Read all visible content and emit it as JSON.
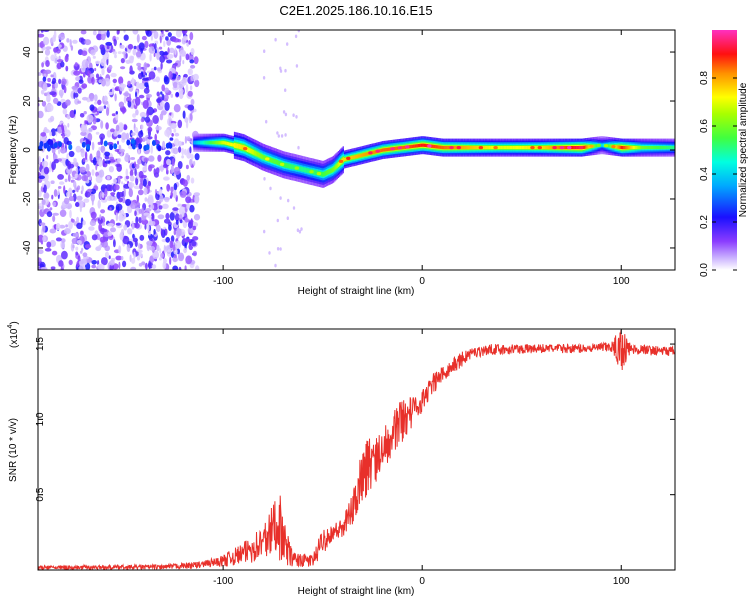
{
  "title": "C2E1.2025.186.10.16.E15",
  "chart_data": [
    {
      "type": "heatmap",
      "xlabel": "Height of straight line (km)",
      "ylabel": "Frequency (Hz)",
      "xlim": [
        -193,
        127
      ],
      "ylim": [
        -49,
        49
      ],
      "xticks": [
        -100,
        0,
        100
      ],
      "yticks": [
        -40,
        -20,
        0,
        20,
        40
      ],
      "colorbar": {
        "label": "Normalized spectral amplitude",
        "range": [
          0,
          1
        ],
        "ticks": [
          0.0,
          0.2,
          0.4,
          0.6,
          0.8
        ]
      },
      "signal_track": {
        "x": [
          -115,
          -100,
          -90,
          -80,
          -70,
          -60,
          -50,
          -45,
          -40,
          -30,
          -20,
          -10,
          0,
          10,
          20,
          40,
          60,
          80,
          90,
          100,
          110,
          127
        ],
        "freq": [
          3,
          3,
          1,
          -3,
          -6,
          -8,
          -10,
          -8,
          -4,
          -2,
          0,
          1,
          2,
          1,
          1,
          1,
          1,
          1,
          2,
          1,
          1,
          1
        ],
        "amplitude": [
          0.35,
          0.7,
          0.75,
          0.6,
          0.55,
          0.5,
          0.55,
          0.6,
          0.75,
          0.8,
          0.85,
          0.85,
          0.9,
          0.85,
          0.8,
          0.7,
          0.75,
          0.95,
          0.4,
          0.9,
          0.6,
          0.5
        ]
      },
      "noise_region": {
        "x_from": -193,
        "x_to": -113
      }
    },
    {
      "type": "line",
      "xlabel": "Height of straight line (km)",
      "ylabel": "SNR (10 * v/v)",
      "multiplier_label": "(x10",
      "multiplier_exponent": "4",
      "multiplier_close": ")",
      "xlim": [
        -193,
        127
      ],
      "ylim": [
        0,
        1.6
      ],
      "xticks": [
        -100,
        0,
        100
      ],
      "yticks": [
        0.5,
        1.0,
        1.5
      ],
      "ytick_labels": [
        "0.5",
        "1.0",
        "1.5"
      ],
      "color": "#e8302a",
      "envelope": {
        "x": [
          -193,
          -130,
          -110,
          -100,
          -90,
          -80,
          -75,
          -72,
          -70,
          -65,
          -55,
          -50,
          -45,
          -40,
          -35,
          -30,
          -25,
          -20,
          -15,
          -10,
          -5,
          0,
          5,
          10,
          15,
          20,
          25,
          30,
          35,
          40,
          60,
          80,
          95,
          100,
          101,
          105,
          127
        ],
        "lo": [
          0.0,
          0.005,
          0.01,
          0.02,
          0.04,
          0.06,
          0.08,
          0.07,
          0.04,
          0.02,
          0.02,
          0.1,
          0.2,
          0.2,
          0.3,
          0.45,
          0.55,
          0.65,
          0.75,
          0.85,
          0.95,
          1.05,
          1.15,
          1.25,
          1.3,
          1.35,
          1.4,
          1.42,
          1.43,
          1.43,
          1.44,
          1.44,
          1.45,
          1.3,
          1.35,
          1.43,
          1.42
        ],
        "hi": [
          0.03,
          0.035,
          0.06,
          0.1,
          0.18,
          0.3,
          0.45,
          0.6,
          0.35,
          0.12,
          0.1,
          0.28,
          0.3,
          0.35,
          0.5,
          0.85,
          0.9,
          0.95,
          1.1,
          1.15,
          1.15,
          1.2,
          1.3,
          1.35,
          1.4,
          1.45,
          1.48,
          1.49,
          1.5,
          1.5,
          1.5,
          1.5,
          1.51,
          1.62,
          1.6,
          1.5,
          1.48
        ]
      }
    }
  ]
}
